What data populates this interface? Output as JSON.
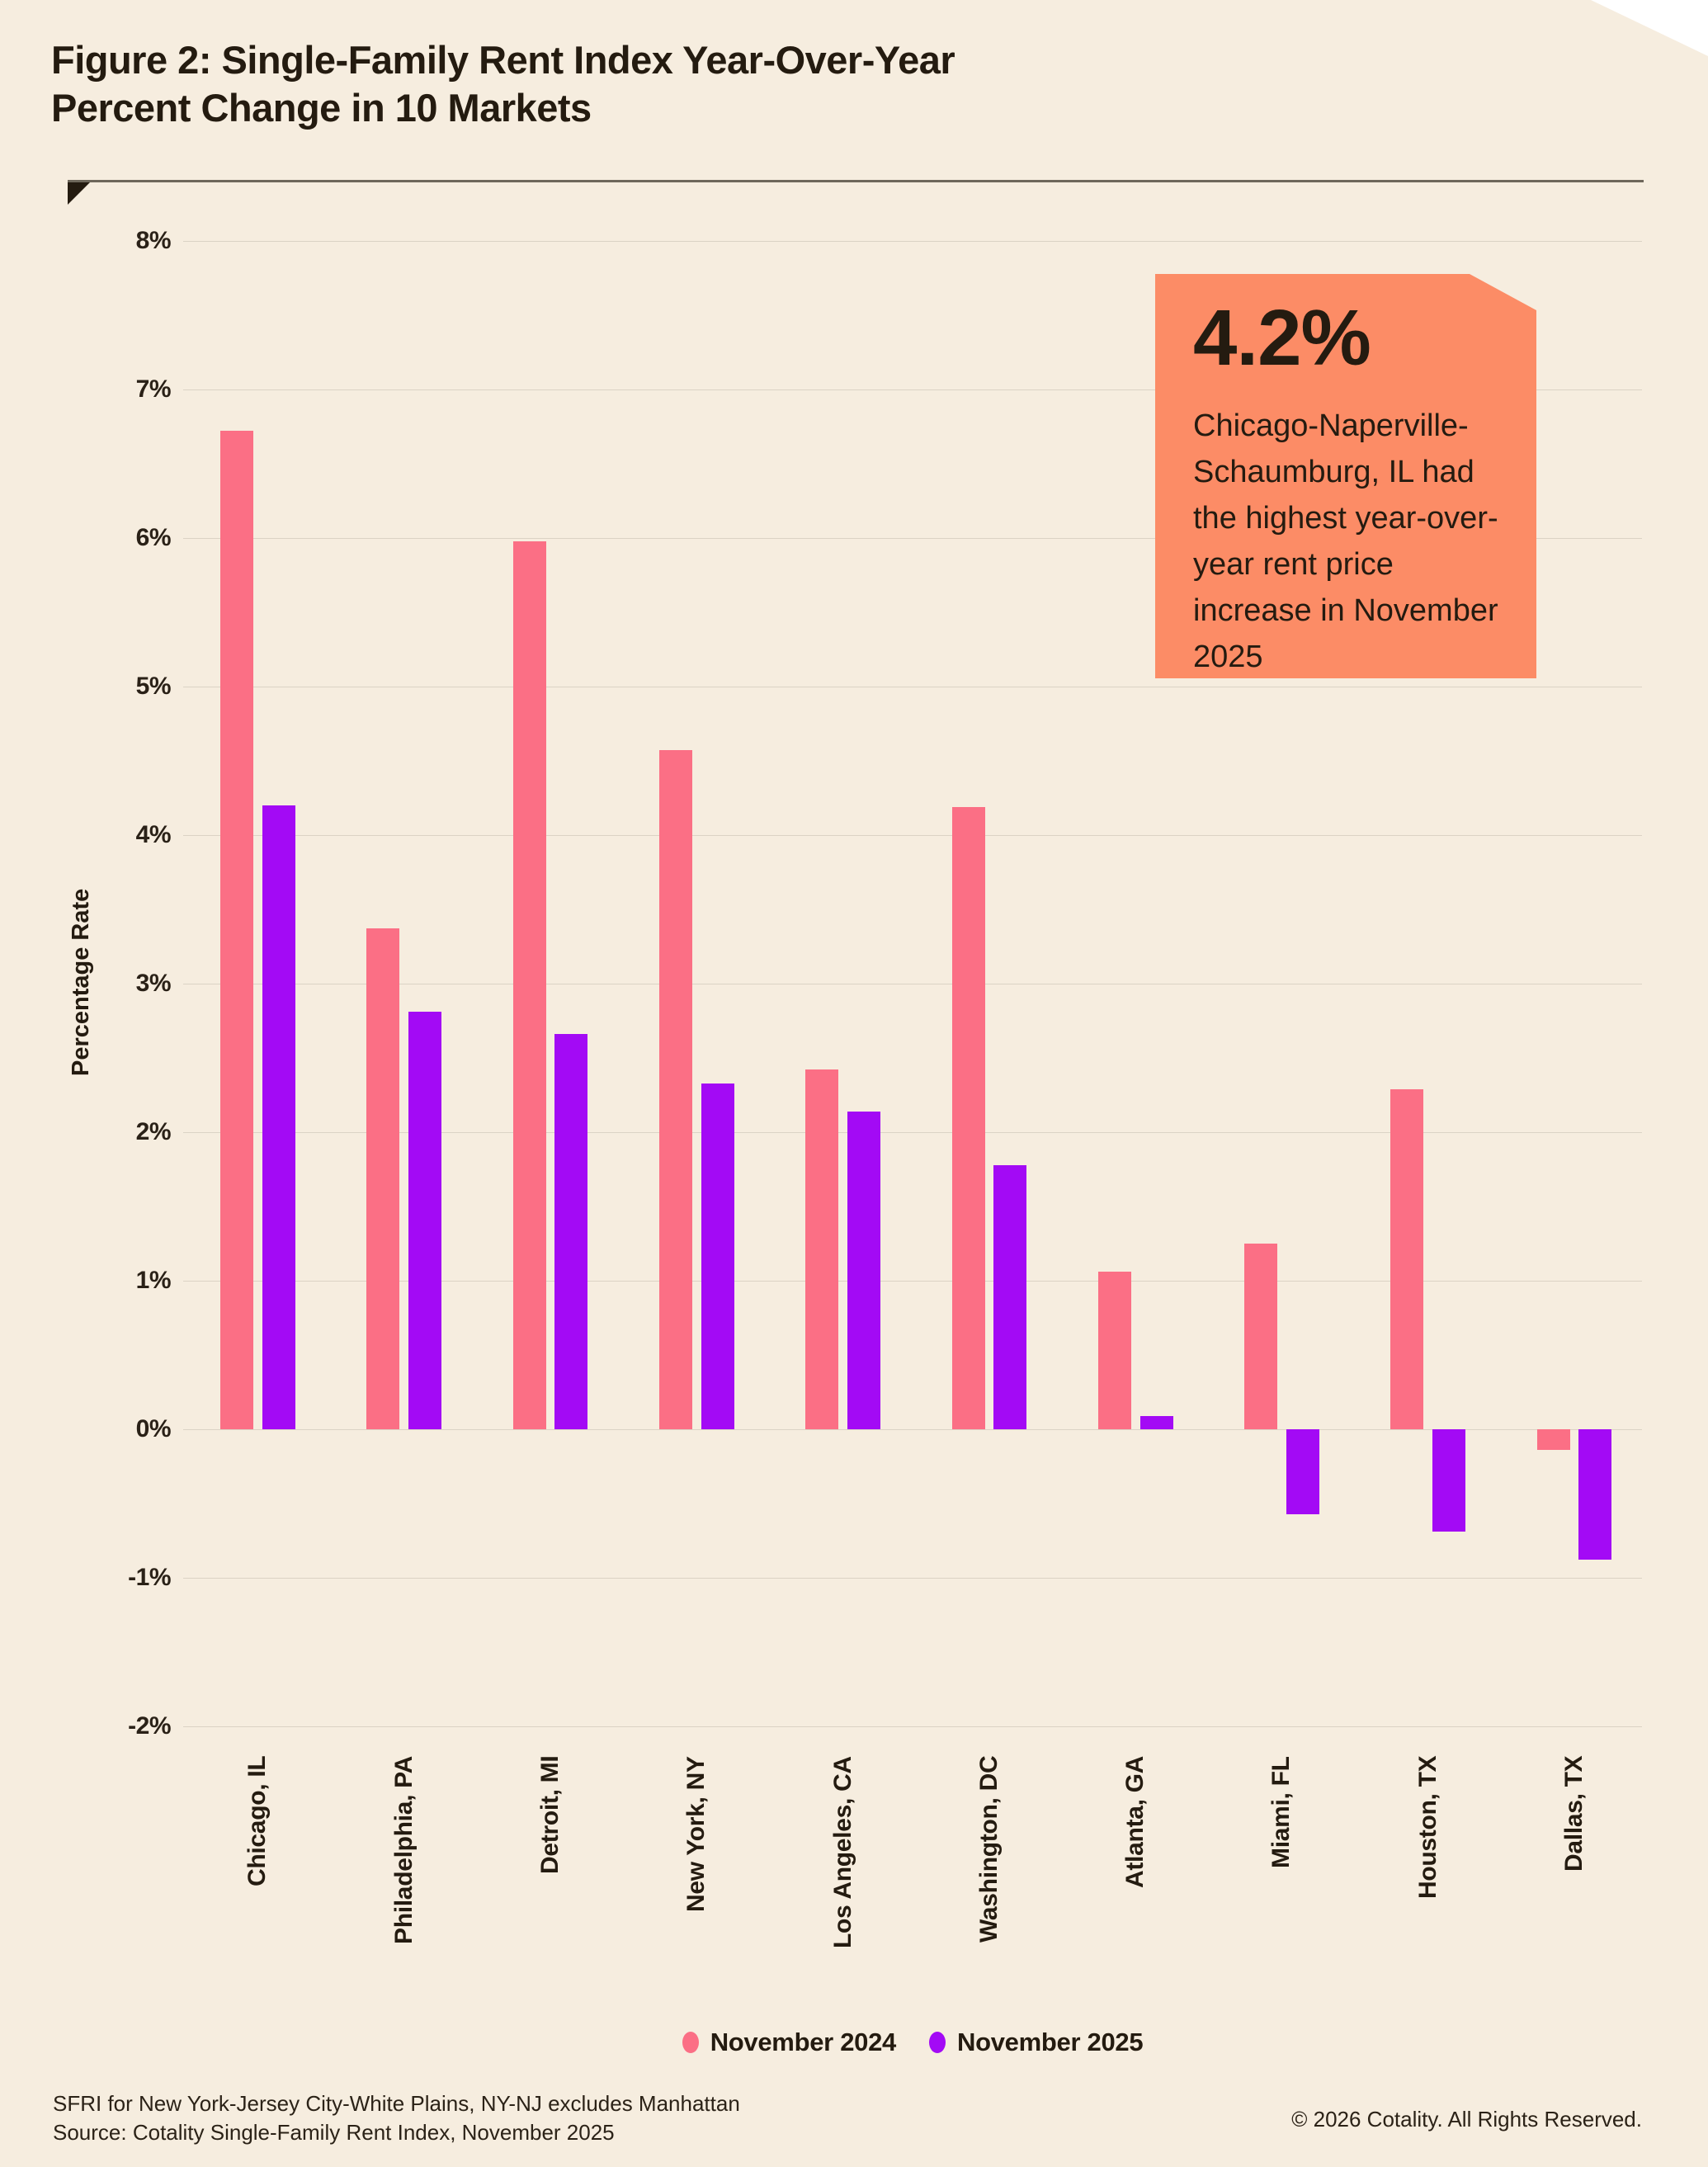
{
  "header": {
    "title_line1": "Figure 2: Single-Family Rent Index Year-Over-Year",
    "title_line2": "Percent Change in 10 Markets"
  },
  "callout": {
    "value": "4.2%",
    "text": "Chicago-Naperville-Schaumburg, IL had the highest year-over-year rent price increase in November 2025",
    "bg_color": "#FC8C66"
  },
  "chart_data": {
    "type": "bar",
    "title": "Figure 2: Single-Family Rent Index Year-Over-Year Percent Change in 10 Markets",
    "xlabel": "",
    "ylabel": "Percentage Rate",
    "ylim": [
      -2,
      8
    ],
    "y_tick_labels": [
      "8%",
      "7%",
      "6%",
      "5%",
      "4%",
      "3%",
      "2%",
      "1%",
      "0%",
      "-1%",
      "-2%"
    ],
    "y_tick_values": [
      8,
      7,
      6,
      5,
      4,
      3,
      2,
      1,
      0,
      -1,
      -2
    ],
    "grid": true,
    "legend_position": "bottom",
    "categories": [
      "Chicago, IL",
      "Philadelphia, PA",
      "Detroit, MI",
      "New York, NY",
      "Los Angeles, CA",
      "Washington, DC",
      "Atlanta, GA",
      "Miami, FL",
      "Houston, TX",
      "Dallas, TX"
    ],
    "series": [
      {
        "name": "November 2024",
        "color": "#FB6F85",
        "values": [
          6.72,
          3.37,
          5.98,
          4.57,
          2.42,
          4.19,
          1.06,
          1.25,
          2.29,
          -0.14
        ]
      },
      {
        "name": "November 2025",
        "color": "#A30AF5",
        "values": [
          4.2,
          2.81,
          2.66,
          2.33,
          2.14,
          1.78,
          0.09,
          -0.57,
          -0.69,
          -0.88
        ]
      }
    ]
  },
  "colors": {
    "background": "#F6EDDF",
    "gridline": "#DBD3C5",
    "text_dark": "#241B10",
    "rule": "#6E675B"
  },
  "footer": {
    "note_line1": "SFRI for New York-Jersey City-White Plains, NY-NJ excludes Manhattan",
    "note_line2": "Source: Cotality Single-Family Rent Index, November 2025",
    "copyright": "© 2026 Cotality. All Rights Reserved."
  }
}
